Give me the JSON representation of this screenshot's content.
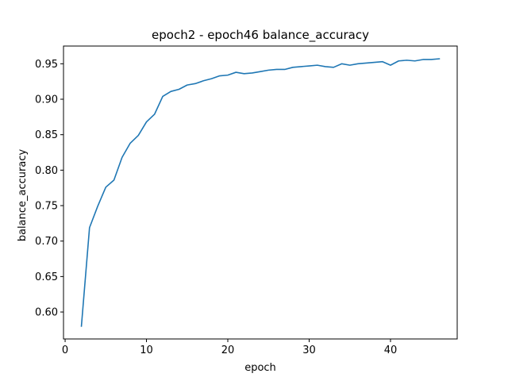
{
  "chart_data": {
    "type": "line",
    "title": "epoch2 - epoch46 balance_accuracy",
    "xlabel": "epoch",
    "ylabel": "balance_accuracy",
    "xlim": [
      -0.2,
      48.2
    ],
    "ylim": [
      0.562,
      0.975
    ],
    "xticks": [
      0,
      10,
      20,
      30,
      40
    ],
    "yticks": [
      0.6,
      0.65,
      0.7,
      0.75,
      0.8,
      0.85,
      0.9,
      0.95
    ],
    "grid": false,
    "legend": "none",
    "series": [
      {
        "color": "#1f77b4",
        "x": [
          2,
          3,
          4,
          5,
          6,
          7,
          8,
          9,
          10,
          11,
          12,
          13,
          14,
          15,
          16,
          17,
          18,
          19,
          20,
          21,
          22,
          23,
          24,
          25,
          26,
          27,
          28,
          29,
          30,
          31,
          32,
          33,
          34,
          35,
          36,
          37,
          38,
          39,
          40,
          41,
          42,
          43,
          44,
          45,
          46
        ],
        "y": [
          0.58,
          0.719,
          0.749,
          0.776,
          0.786,
          0.818,
          0.838,
          0.849,
          0.868,
          0.879,
          0.904,
          0.911,
          0.914,
          0.92,
          0.922,
          0.926,
          0.929,
          0.933,
          0.934,
          0.938,
          0.936,
          0.937,
          0.939,
          0.941,
          0.942,
          0.942,
          0.945,
          0.946,
          0.947,
          0.948,
          0.946,
          0.945,
          0.95,
          0.948,
          0.95,
          0.951,
          0.952,
          0.953,
          0.948,
          0.954,
          0.955,
          0.954,
          0.956,
          0.956,
          0.957
        ]
      }
    ]
  }
}
